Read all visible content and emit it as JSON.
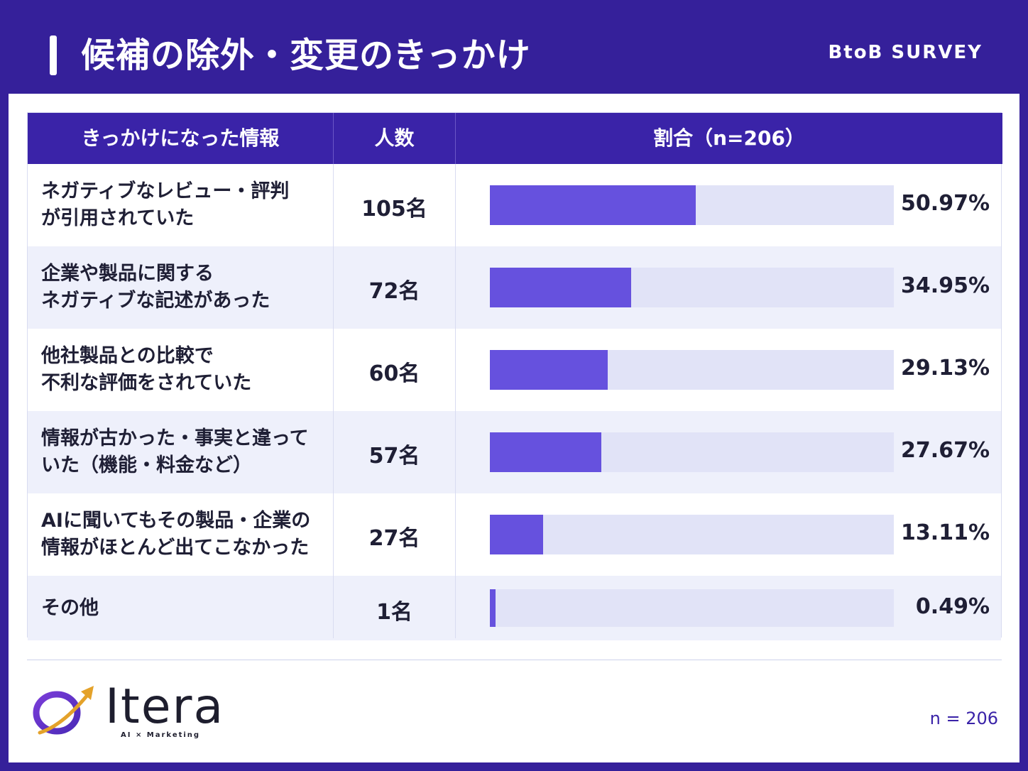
{
  "header": {
    "title": "候補の除外・変更のきっかけ",
    "tag": "BtoB SURVEY"
  },
  "table": {
    "col1_header": "きっかけになった情報",
    "col2_header": "人数",
    "col3_header": "割合（n=206）"
  },
  "chart_data": {
    "type": "bar",
    "orientation": "horizontal",
    "xlim": [
      0,
      100
    ],
    "categories": [
      "ネガティブなレビュー・評判が引用されていた",
      "企業や製品に関するネガティブな記述があった",
      "他社製品との比較で不利な評価をされていた",
      "情報が古かった・事実と違っていた（機能・料金など）",
      "AIに聞いてもその製品・企業の情報がほとんど出てこなかった",
      "その他"
    ],
    "values": [
      50.97,
      34.95,
      29.13,
      27.67,
      13.11,
      0.49
    ],
    "rows": [
      {
        "line1": "ネガティブなレビュー・評判",
        "line2": "が引用されていた",
        "count": "105名",
        "pct_label": "50.97%",
        "value": 50.97
      },
      {
        "line1": "企業や製品に関する",
        "line2": "ネガティブな記述があった",
        "count": "72名",
        "pct_label": "34.95%",
        "value": 34.95
      },
      {
        "line1": "他社製品との比較で",
        "line2": "不利な評価をされていた",
        "count": "60名",
        "pct_label": "29.13%",
        "value": 29.13
      },
      {
        "line1": "情報が古かった・事実と違って",
        "line2": "いた（機能・料金など）",
        "count": "57名",
        "pct_label": "27.67%",
        "value": 27.67
      },
      {
        "line1": "AIに聞いてもその製品・企業の",
        "line2": "情報がほとんど出てこなかった",
        "count": "27名",
        "pct_label": "13.11%",
        "value": 13.11
      },
      {
        "line1": "その他",
        "line2": "",
        "count": "1名",
        "pct_label": "0.49%",
        "value": 0.49
      }
    ]
  },
  "footer": {
    "logo_name": "Itera",
    "logo_sub": "AI × Marketing",
    "n_label": "n = 206"
  },
  "colors": {
    "brand": "#35209a",
    "header_fill": "#3a23a8",
    "bar": "#6651de",
    "track": "#e1e3f7",
    "row_alt": "#eef0fb"
  }
}
